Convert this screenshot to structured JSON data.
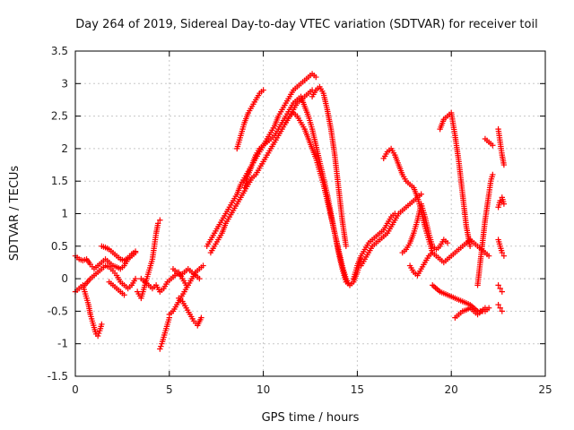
{
  "chart_data": {
    "type": "scatter",
    "title": "Day 264 of 2019, Sidereal Day-to-day VTEC variation (SDTVAR) for receiver toil",
    "xlabel": "GPS time / hours",
    "ylabel": "SDTVAR / TECUs",
    "xlim": [
      0,
      25
    ],
    "ylim": [
      -1.5,
      3.5
    ],
    "xticks": [
      0,
      5,
      10,
      15,
      20,
      25
    ],
    "xtick_labels": [
      "0",
      "5",
      "10",
      "15",
      "20",
      "25"
    ],
    "yticks": [
      -1.5,
      -1,
      -0.5,
      0,
      0.5,
      1,
      1.5,
      2,
      2.5,
      3,
      3.5
    ],
    "ytick_labels": [
      "-1.5",
      "-1",
      "-0.5",
      "0",
      "0.5",
      "1",
      "1.5",
      "2",
      "2.5",
      "3",
      "3.5"
    ],
    "grid": true,
    "marker": "+",
    "color": "#ff0000",
    "series": [
      {
        "x": [
          0.0,
          0.2,
          0.4,
          0.6,
          0.8,
          1.0,
          1.2,
          1.4,
          1.6,
          1.8,
          2.0,
          2.2,
          2.4,
          2.6,
          2.8,
          3.0,
          3.2
        ],
        "y": [
          0.35,
          0.3,
          0.28,
          0.3,
          0.22,
          0.15,
          0.2,
          0.25,
          0.3,
          0.25,
          0.2,
          0.18,
          0.15,
          0.2,
          0.3,
          0.35,
          0.4
        ]
      },
      {
        "x": [
          0.0,
          0.2,
          0.4,
          0.5,
          0.6,
          0.7,
          0.8,
          0.9,
          1.0,
          1.1,
          1.2,
          1.3,
          1.4
        ],
        "y": [
          -0.2,
          -0.15,
          -0.1,
          -0.2,
          -0.3,
          -0.4,
          -0.55,
          -0.65,
          -0.75,
          -0.85,
          -0.88,
          -0.8,
          -0.7
        ]
      },
      {
        "x": [
          0.5,
          0.8,
          1.0,
          1.2,
          1.4,
          1.6,
          1.8,
          2.0,
          2.2,
          2.4,
          2.6,
          2.8,
          3.0,
          3.2
        ],
        "y": [
          -0.1,
          0.0,
          0.05,
          0.1,
          0.15,
          0.2,
          0.18,
          0.12,
          0.05,
          -0.05,
          -0.1,
          -0.15,
          -0.1,
          0.0
        ]
      },
      {
        "x": [
          1.4,
          1.6,
          1.8,
          2.0,
          2.2,
          2.4,
          2.6,
          2.8,
          3.0,
          3.2
        ],
        "y": [
          0.5,
          0.48,
          0.45,
          0.4,
          0.35,
          0.3,
          0.28,
          0.32,
          0.38,
          0.42
        ]
      },
      {
        "x": [
          1.8,
          2.0,
          2.2,
          2.4,
          2.6
        ],
        "y": [
          -0.05,
          -0.1,
          -0.15,
          -0.2,
          -0.25
        ]
      },
      {
        "x": [
          3.3,
          3.5,
          3.7,
          3.9,
          4.1,
          4.2,
          4.3,
          4.4,
          4.5
        ],
        "y": [
          -0.2,
          -0.3,
          -0.1,
          0.1,
          0.3,
          0.5,
          0.7,
          0.85,
          0.9
        ]
      },
      {
        "x": [
          3.5,
          3.7,
          3.9,
          4.1,
          4.3,
          4.5,
          4.7,
          4.9,
          5.1,
          5.3,
          5.5,
          5.7,
          5.9
        ],
        "y": [
          0.0,
          -0.05,
          -0.1,
          -0.15,
          -0.1,
          -0.2,
          -0.15,
          -0.05,
          0.0,
          0.05,
          0.1,
          0.0,
          -0.1
        ]
      },
      {
        "x": [
          4.5,
          4.6,
          4.7,
          4.8,
          4.9,
          5.0
        ],
        "y": [
          -1.08,
          -1.0,
          -0.9,
          -0.8,
          -0.7,
          -0.6
        ]
      },
      {
        "x": [
          5.0,
          5.2,
          5.4,
          5.6,
          5.8,
          6.0,
          6.2,
          6.4,
          6.6,
          6.8
        ],
        "y": [
          -0.55,
          -0.5,
          -0.4,
          -0.3,
          -0.2,
          -0.1,
          0.0,
          0.1,
          0.15,
          0.2
        ]
      },
      {
        "x": [
          5.2,
          5.4,
          5.6,
          5.8,
          6.0,
          6.2,
          6.4,
          6.6
        ],
        "y": [
          0.15,
          0.1,
          0.05,
          0.1,
          0.15,
          0.1,
          0.05,
          0.0
        ]
      },
      {
        "x": [
          5.5,
          5.7,
          5.9,
          6.1,
          6.3,
          6.5,
          6.7
        ],
        "y": [
          -0.3,
          -0.35,
          -0.45,
          -0.55,
          -0.65,
          -0.72,
          -0.6
        ]
      },
      {
        "x": [
          7.0,
          7.2,
          7.4,
          7.6,
          7.8,
          8.0,
          8.2,
          8.4,
          8.6,
          8.8,
          9.0,
          9.2,
          9.4,
          9.6,
          9.8,
          10.0,
          10.2,
          10.4,
          10.6,
          10.8,
          11.0,
          11.2,
          11.4,
          11.6,
          11.8,
          12.0,
          12.2,
          12.4,
          12.6,
          12.8
        ],
        "y": [
          0.5,
          0.6,
          0.7,
          0.8,
          0.9,
          1.0,
          1.1,
          1.2,
          1.3,
          1.45,
          1.55,
          1.65,
          1.75,
          1.85,
          1.95,
          2.05,
          2.15,
          2.25,
          2.35,
          2.5,
          2.6,
          2.7,
          2.8,
          2.9,
          2.95,
          3.0,
          3.05,
          3.1,
          3.15,
          3.1
        ]
      },
      {
        "x": [
          7.2,
          7.4,
          7.6,
          7.8,
          8.0,
          8.2,
          8.4,
          8.6,
          8.8,
          9.0,
          9.2,
          9.4,
          9.6,
          9.8,
          10.0,
          10.2,
          10.4,
          10.6,
          10.8,
          11.0,
          11.2,
          11.4,
          11.6,
          11.8,
          12.0,
          12.2,
          12.4,
          12.6
        ],
        "y": [
          0.4,
          0.5,
          0.6,
          0.7,
          0.85,
          0.95,
          1.05,
          1.15,
          1.25,
          1.35,
          1.45,
          1.55,
          1.6,
          1.7,
          1.8,
          1.9,
          2.0,
          2.1,
          2.2,
          2.3,
          2.4,
          2.5,
          2.6,
          2.7,
          2.75,
          2.8,
          2.85,
          2.9
        ]
      },
      {
        "x": [
          8.6,
          8.8,
          9.0,
          9.2,
          9.4,
          9.6,
          9.8,
          10.0
        ],
        "y": [
          2.0,
          2.2,
          2.4,
          2.55,
          2.65,
          2.75,
          2.85,
          2.9
        ]
      },
      {
        "x": [
          9.0,
          9.2,
          9.4,
          9.6,
          9.8,
          10.0,
          10.2,
          10.4,
          10.6,
          10.8,
          11.0,
          11.2,
          11.4,
          11.6,
          11.8,
          12.0,
          12.2,
          12.4,
          12.6,
          12.8,
          13.0,
          13.2,
          13.4,
          13.6,
          13.8,
          14.0,
          14.2,
          14.4,
          14.6,
          14.8,
          15.0,
          15.2
        ],
        "y": [
          1.4,
          1.6,
          1.75,
          1.9,
          2.0,
          2.05,
          2.1,
          2.15,
          2.2,
          2.3,
          2.4,
          2.5,
          2.6,
          2.7,
          2.75,
          2.8,
          2.65,
          2.5,
          2.3,
          2.05,
          1.8,
          1.55,
          1.3,
          1.0,
          0.7,
          0.4,
          0.15,
          -0.05,
          -0.1,
          -0.05,
          0.1,
          0.3
        ]
      },
      {
        "x": [
          11.2,
          11.4,
          11.6,
          11.8,
          12.0,
          12.2,
          12.4,
          12.6,
          12.8,
          13.0,
          13.2,
          13.4,
          13.6,
          13.8,
          14.0,
          14.2,
          14.4,
          14.6
        ],
        "y": [
          2.4,
          2.5,
          2.55,
          2.5,
          2.4,
          2.3,
          2.15,
          2.0,
          1.85,
          1.65,
          1.45,
          1.2,
          0.95,
          0.7,
          0.45,
          0.2,
          0.0,
          -0.1
        ]
      },
      {
        "x": [
          12.6,
          12.8,
          13.0,
          13.2,
          13.4,
          13.6,
          13.8,
          14.0,
          14.2,
          14.4
        ],
        "y": [
          2.8,
          2.9,
          2.95,
          2.85,
          2.6,
          2.3,
          1.9,
          1.4,
          0.9,
          0.5
        ]
      },
      {
        "x": [
          14.8,
          15.0,
          15.2,
          15.4,
          15.6,
          15.8,
          16.0,
          16.2,
          16.4,
          16.6,
          16.8,
          17.0
        ],
        "y": [
          0.0,
          0.2,
          0.35,
          0.45,
          0.55,
          0.6,
          0.65,
          0.7,
          0.75,
          0.85,
          0.95,
          1.0
        ]
      },
      {
        "x": [
          15.2,
          15.4,
          15.6,
          15.8,
          16.0,
          16.2,
          16.4,
          16.6,
          16.8,
          17.0,
          17.2,
          17.4,
          17.6,
          17.8,
          18.0,
          18.2,
          18.4
        ],
        "y": [
          0.2,
          0.3,
          0.4,
          0.5,
          0.55,
          0.6,
          0.65,
          0.7,
          0.8,
          0.9,
          1.0,
          1.05,
          1.1,
          1.15,
          1.2,
          1.25,
          1.3
        ]
      },
      {
        "x": [
          16.4,
          16.6,
          16.8,
          17.0,
          17.2,
          17.4,
          17.6,
          17.8,
          18.0,
          18.2,
          18.4,
          18.6,
          18.8,
          19.0
        ],
        "y": [
          1.85,
          1.95,
          2.0,
          1.9,
          1.75,
          1.6,
          1.5,
          1.45,
          1.4,
          1.25,
          1.05,
          0.8,
          0.6,
          0.4
        ]
      },
      {
        "x": [
          17.4,
          17.6,
          17.8,
          18.0,
          18.2,
          18.4,
          18.6,
          18.8,
          19.0,
          19.2,
          19.4,
          19.6,
          19.8
        ],
        "y": [
          0.4,
          0.45,
          0.55,
          0.7,
          0.9,
          1.15,
          0.95,
          0.7,
          0.5,
          0.45,
          0.5,
          0.6,
          0.55
        ]
      },
      {
        "x": [
          17.8,
          18.0,
          18.2,
          18.4,
          18.6,
          18.8,
          19.0,
          19.2,
          19.4,
          19.6,
          19.8,
          20.0,
          20.2,
          20.4,
          20.6,
          20.8,
          21.0,
          21.2,
          21.4,
          21.6,
          21.8,
          22.0
        ],
        "y": [
          0.2,
          0.1,
          0.05,
          0.15,
          0.25,
          0.35,
          0.4,
          0.35,
          0.3,
          0.25,
          0.3,
          0.35,
          0.4,
          0.45,
          0.5,
          0.55,
          0.6,
          0.55,
          0.5,
          0.45,
          0.4,
          0.35
        ]
      },
      {
        "x": [
          19.4,
          19.6,
          19.8,
          20.0,
          20.2,
          20.4,
          20.6,
          20.8,
          21.0
        ],
        "y": [
          2.3,
          2.45,
          2.5,
          2.55,
          2.2,
          1.8,
          1.3,
          0.8,
          0.5
        ]
      },
      {
        "x": [
          19.0,
          19.4,
          19.8,
          20.2,
          20.6,
          21.0,
          21.4,
          21.8,
          22.0
        ],
        "y": [
          -0.1,
          -0.2,
          -0.25,
          -0.3,
          -0.35,
          -0.4,
          -0.5,
          -0.5,
          -0.45
        ]
      },
      {
        "x": [
          20.2,
          20.4,
          20.6,
          20.8,
          21.0,
          21.2,
          21.4,
          21.6,
          21.8
        ],
        "y": [
          -0.6,
          -0.55,
          -0.5,
          -0.48,
          -0.45,
          -0.5,
          -0.55,
          -0.5,
          -0.45
        ]
      },
      {
        "x": [
          21.4,
          21.6,
          21.8,
          22.0,
          22.1,
          22.2
        ],
        "y": [
          -0.1,
          0.4,
          0.9,
          1.3,
          1.5,
          1.6
        ]
      },
      {
        "x": [
          21.8,
          22.0,
          22.2
        ],
        "y": [
          2.15,
          2.1,
          2.05
        ]
      },
      {
        "x": [
          22.5,
          22.6,
          22.7,
          22.8
        ],
        "y": [
          2.3,
          2.1,
          1.9,
          1.75
        ]
      },
      {
        "x": [
          22.5,
          22.6,
          22.7,
          22.8
        ],
        "y": [
          1.1,
          1.2,
          1.25,
          1.15
        ]
      },
      {
        "x": [
          22.5,
          22.6,
          22.7
        ],
        "y": [
          -0.1,
          -0.15,
          -0.2
        ]
      },
      {
        "x": [
          22.5,
          22.6,
          22.7
        ],
        "y": [
          -0.4,
          -0.45,
          -0.5
        ]
      },
      {
        "x": [
          22.5,
          22.6,
          22.7,
          22.8
        ],
        "y": [
          0.6,
          0.5,
          0.4,
          0.35
        ]
      }
    ]
  }
}
